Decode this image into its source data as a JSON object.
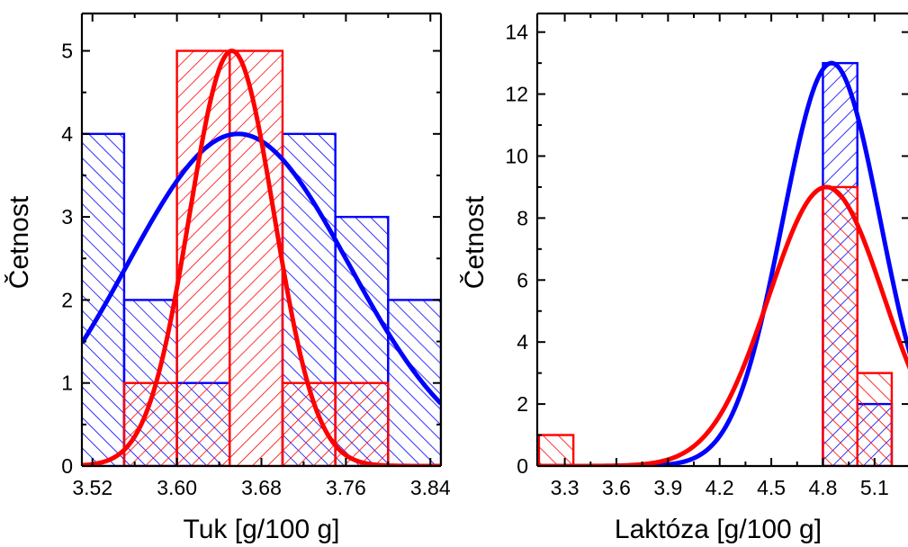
{
  "colors": {
    "blue": "#0000ff",
    "red": "#ff0000",
    "axis": "#000000"
  },
  "chart_data": [
    {
      "type": "bar",
      "subtype": "histogram with normal fit",
      "xlabel": "Tuk [g/100 g]",
      "ylabel": "Četnost",
      "xlim": [
        3.51,
        3.85
      ],
      "ylim": [
        0,
        5.45
      ],
      "xticks": [
        3.52,
        3.6,
        3.68,
        3.76,
        3.84
      ],
      "xtick_labels": [
        "3.52",
        "3.60",
        "3.68",
        "3.76",
        "3.84"
      ],
      "yticks": [
        0,
        1,
        2,
        3,
        4,
        5
      ],
      "ytick_labels": [
        "0",
        "1",
        "2",
        "3",
        "4",
        "5"
      ],
      "grid": false,
      "series": [
        {
          "color": "#0000ff",
          "hatch": "backslash",
          "bins": [
            {
              "from": 3.5,
              "to": 3.55,
              "count": 4
            },
            {
              "from": 3.55,
              "to": 3.6,
              "count": 2
            },
            {
              "from": 3.6,
              "to": 3.65,
              "count": 1
            },
            {
              "from": 3.65,
              "to": 3.7,
              "count": 0
            },
            {
              "from": 3.7,
              "to": 3.75,
              "count": 4
            },
            {
              "from": 3.75,
              "to": 3.8,
              "count": 3
            },
            {
              "from": 3.8,
              "to": 3.85,
              "count": 2
            }
          ],
          "fit": {
            "mean": 3.658,
            "sd": 0.105,
            "peak": 4.0
          }
        },
        {
          "color": "#ff0000",
          "hatch": "slash",
          "bins": [
            {
              "from": 3.55,
              "to": 3.6,
              "count": 1
            },
            {
              "from": 3.6,
              "to": 3.65,
              "count": 5
            },
            {
              "from": 3.65,
              "to": 3.7,
              "count": 5
            },
            {
              "from": 3.7,
              "to": 3.75,
              "count": 1
            },
            {
              "from": 3.75,
              "to": 3.8,
              "count": 1
            }
          ],
          "fit": {
            "mean": 3.652,
            "sd": 0.04,
            "peak": 5.0
          }
        }
      ]
    },
    {
      "type": "bar",
      "subtype": "histogram with normal fit",
      "xlabel": "Laktóza [g/100 g]",
      "ylabel": "Četnost",
      "xlim": [
        3.14,
        5.31
      ],
      "ylim": [
        0,
        14.6
      ],
      "xticks": [
        3.3,
        3.6,
        3.9,
        4.2,
        4.5,
        4.8,
        5.1
      ],
      "xtick_labels": [
        "3.3",
        "3.6",
        "3.9",
        "4.2",
        "4.5",
        "4.8",
        "5.1"
      ],
      "yticks": [
        0,
        2,
        4,
        6,
        8,
        10,
        12,
        14
      ],
      "ytick_labels": [
        "0",
        "2",
        "4",
        "6",
        "8",
        "10",
        "12",
        "14"
      ],
      "grid": false,
      "series": [
        {
          "color": "#0000ff",
          "hatch": "slash",
          "bins": [
            {
              "from": 4.8,
              "to": 5.0,
              "count": 13
            },
            {
              "from": 5.0,
              "to": 5.2,
              "count": 2
            }
          ],
          "fit": {
            "mean": 4.85,
            "sd": 0.285,
            "peak": 13.0
          }
        },
        {
          "color": "#ff0000",
          "hatch": "backslash",
          "bins": [
            {
              "from": 3.15,
              "to": 3.35,
              "count": 1
            },
            {
              "from": 4.8,
              "to": 5.0,
              "count": 9
            },
            {
              "from": 5.0,
              "to": 5.2,
              "count": 3
            }
          ],
          "fit": {
            "mean": 4.82,
            "sd": 0.335,
            "peak": 9.0
          }
        }
      ]
    }
  ]
}
